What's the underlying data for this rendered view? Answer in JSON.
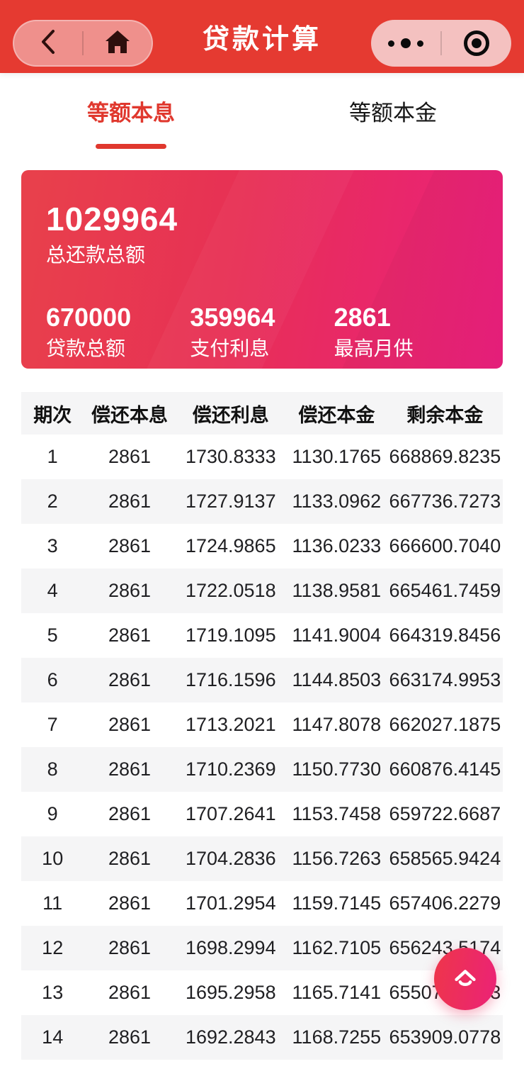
{
  "header": {
    "title": "贷款计算"
  },
  "tabs": [
    {
      "label": "等额本息",
      "active": true
    },
    {
      "label": "等额本金",
      "active": false
    }
  ],
  "summary": {
    "total": {
      "value": "1029964",
      "label": "总还款总额"
    },
    "items": [
      {
        "value": "670000",
        "label": "贷款总额"
      },
      {
        "value": "359964",
        "label": "支付利息"
      },
      {
        "value": "2861",
        "label": "最高月供"
      }
    ]
  },
  "table": {
    "headers": [
      "期次",
      "偿还本息",
      "偿还利息",
      "偿还本金",
      "剩余本金"
    ],
    "rows": [
      [
        "1",
        "2861",
        "1730.8333",
        "1130.1765",
        "668869.8235"
      ],
      [
        "2",
        "2861",
        "1727.9137",
        "1133.0962",
        "667736.7273"
      ],
      [
        "3",
        "2861",
        "1724.9865",
        "1136.0233",
        "666600.7040"
      ],
      [
        "4",
        "2861",
        "1722.0518",
        "1138.9581",
        "665461.7459"
      ],
      [
        "5",
        "2861",
        "1719.1095",
        "1141.9004",
        "664319.8456"
      ],
      [
        "6",
        "2861",
        "1716.1596",
        "1144.8503",
        "663174.9953"
      ],
      [
        "7",
        "2861",
        "1713.2021",
        "1147.8078",
        "662027.1875"
      ],
      [
        "8",
        "2861",
        "1710.2369",
        "1150.7730",
        "660876.4145"
      ],
      [
        "9",
        "2861",
        "1707.2641",
        "1153.7458",
        "659722.6687"
      ],
      [
        "10",
        "2861",
        "1704.2836",
        "1156.7263",
        "658565.9424"
      ],
      [
        "11",
        "2861",
        "1701.2954",
        "1159.7145",
        "657406.2279"
      ],
      [
        "12",
        "2861",
        "1698.2994",
        "1162.7105",
        "656243.5174"
      ],
      [
        "13",
        "2861",
        "1695.2958",
        "1165.7141",
        "655077.8033"
      ],
      [
        "14",
        "2861",
        "1692.2843",
        "1168.7255",
        "653909.0778"
      ]
    ]
  },
  "colors": {
    "header_bg": "#e53a31",
    "accent_red": "#e0382e",
    "capsule_left_bg": "#ef908c",
    "capsule_right_bg": "#f4c1c0",
    "card_gradient_start": "#e8414b",
    "card_gradient_end": "#eb1f7e",
    "row_alt_bg": "#f5f5f6",
    "fab_gradient_start": "#ee364a",
    "fab_gradient_end": "#eb2277"
  }
}
